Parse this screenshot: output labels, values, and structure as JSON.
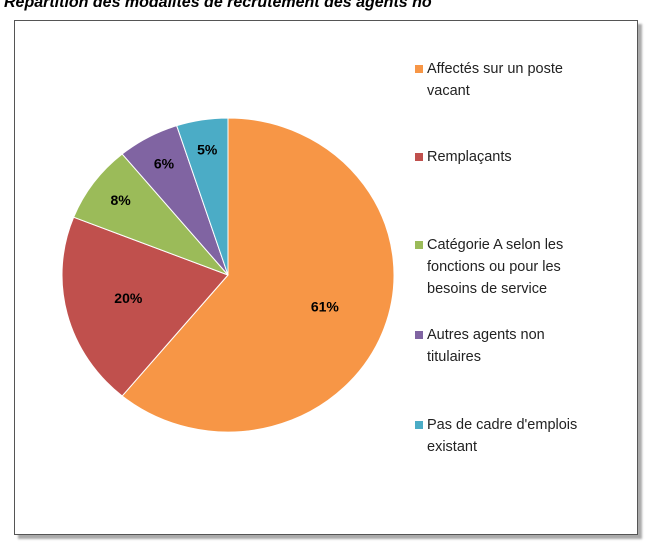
{
  "chart_data": {
    "type": "pie",
    "title": "Répartition des modalités de recrutement des agents no",
    "categories": [
      "Affectés sur un poste vacant",
      "Remplaçants",
      "Catégorie A selon les fonctions ou pour les besoins de service",
      "Autres agents non titulaires",
      "Pas de cadre d'emplois existant"
    ],
    "values": [
      61,
      20,
      8,
      6,
      5
    ],
    "value_labels": [
      "61%",
      "20%",
      "8%",
      "6%",
      "5%"
    ],
    "colors": [
      "#f79646",
      "#c0504d",
      "#9bbb59",
      "#8064a2",
      "#4bacc6"
    ],
    "legend": "right"
  }
}
